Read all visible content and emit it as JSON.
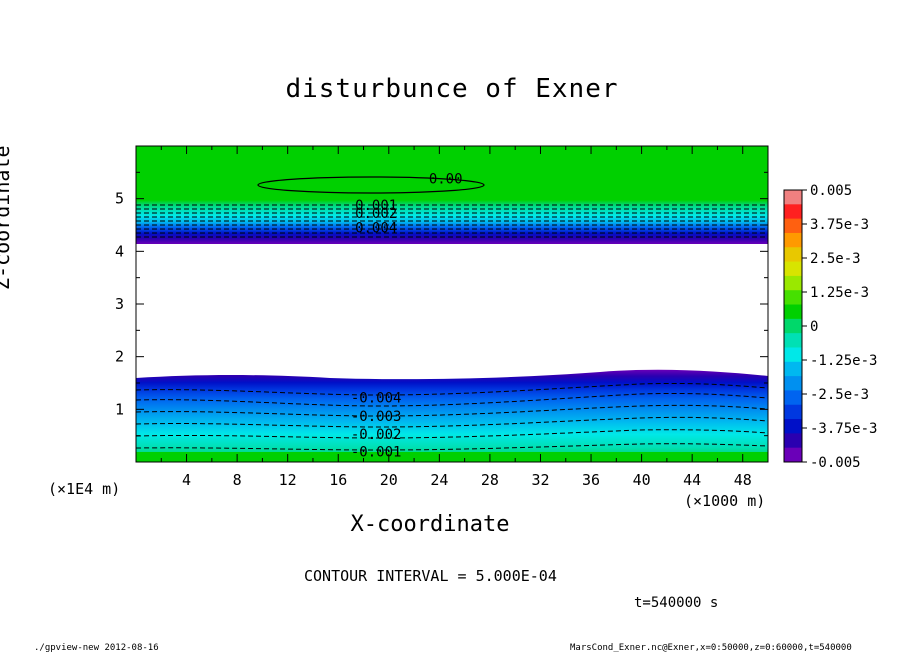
{
  "page": {
    "title": "disturbunce of Exner",
    "contour_interval": "CONTOUR INTERVAL = 5.000E-04",
    "time_label": "t=540000 s",
    "footer_left": "./gpview-new   2012-08-16",
    "footer_right": "MarsCond_Exner.nc@Exner,x=0:50000,z=0:60000,t=540000"
  },
  "chart_data": {
    "type": "heatmap",
    "title": "disturbunce of Exner",
    "xlabel": "X-coordinate",
    "ylabel": "Z-coordinate",
    "x_unit": "(×1000 m)",
    "y_unit": "(×1E4 m)",
    "xlim": [
      0,
      50
    ],
    "ylim": [
      0,
      6
    ],
    "x_ticks": [
      4,
      8,
      12,
      16,
      20,
      24,
      28,
      32,
      36,
      40,
      44,
      48
    ],
    "y_ticks": [
      1,
      2,
      3,
      4,
      5
    ],
    "colorbar": {
      "min": -0.005,
      "max": 0.005,
      "tick_labels": [
        "0.005",
        "3.75e-3",
        "2.5e-3",
        "1.25e-3",
        "0",
        "-1.25e-3",
        "-2.5e-3",
        "-3.75e-3",
        "-0.005"
      ],
      "colors": [
        "#f08080",
        "#ff2020",
        "#ff6010",
        "#ff9a00",
        "#e8c800",
        "#d8e400",
        "#9ae800",
        "#46e000",
        "#00d000",
        "#00d86a",
        "#00e0b4",
        "#00e8e8",
        "#00b8f0",
        "#0090f0",
        "#0064f0",
        "#0038e0",
        "#0010c8",
        "#2a00b0",
        "#6a00b8"
      ]
    },
    "contour_labels": [
      {
        "text": "0.00",
        "x": 24.5,
        "z": 5.38
      },
      {
        "text": "0.001",
        "x": 19,
        "z": 4.88
      },
      {
        "text": "0.002",
        "x": 19,
        "z": 4.73
      },
      {
        "text": "0.004",
        "x": 19,
        "z": 4.45
      },
      {
        "text": "-0.004",
        "x": 19,
        "z": 1.22
      },
      {
        "text": "-0.003",
        "x": 19,
        "z": 0.87
      },
      {
        "text": "-0.002",
        "x": 19,
        "z": 0.53
      },
      {
        "text": "-0.001",
        "x": 19,
        "z": 0.2
      }
    ],
    "regions": {
      "lower_layer_top_z": 1.6,
      "upper_layer_bottom_z": 4.15,
      "middle": "blank (no data)"
    }
  },
  "colors": {
    "background": "#ffffff",
    "field_green": "#00d000",
    "deep_purple": "#6a00b8"
  }
}
